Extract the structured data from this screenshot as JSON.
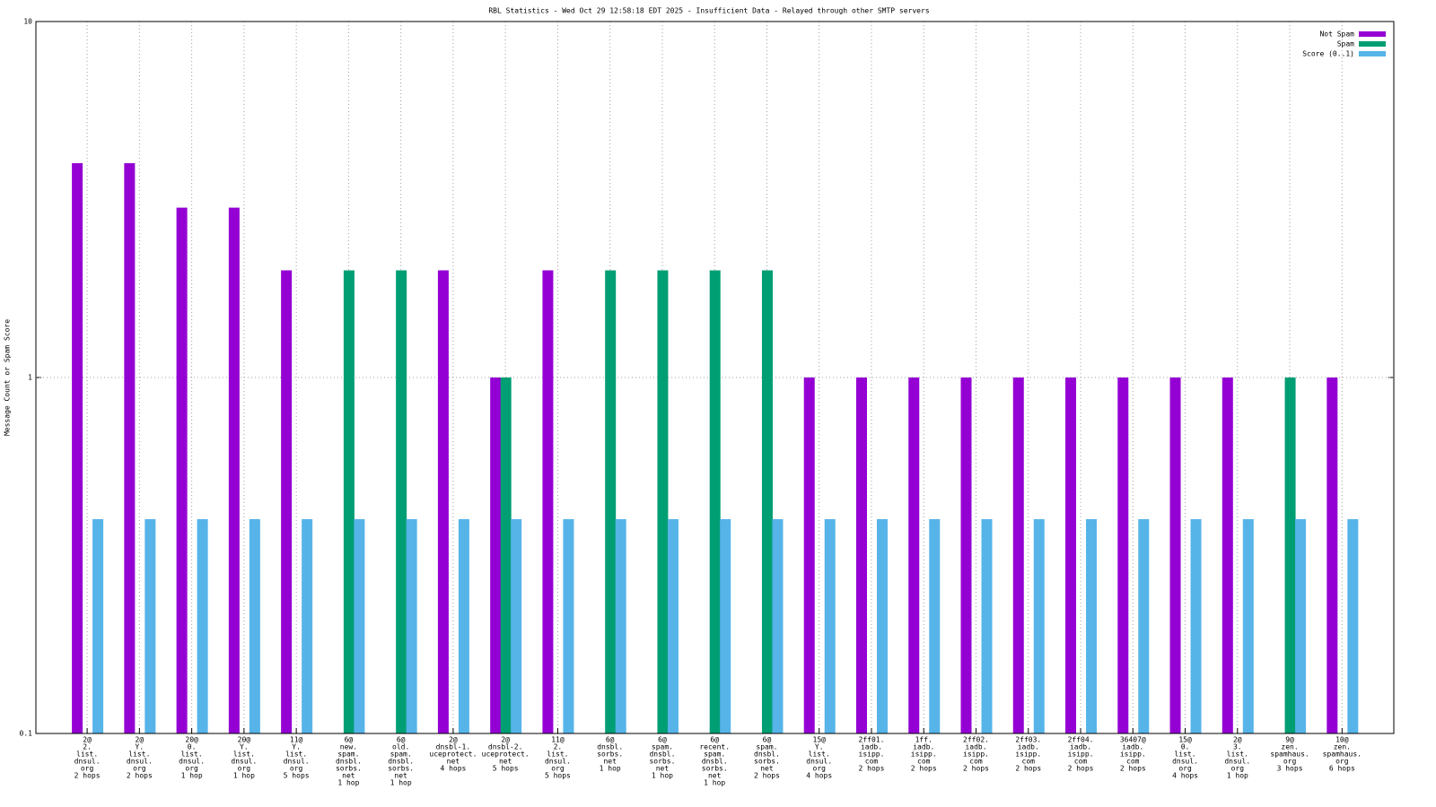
{
  "chart_data": {
    "type": "bar",
    "title": "RBL Statistics - Wed Oct 29 12:58:18 EDT 2025 - Insufficient Data - Relayed through other SMTP servers",
    "y_label": "Message Count or Spam Score",
    "log_scale": true,
    "grid": true,
    "legend": "top-right",
    "ylim": [
      0.1,
      10
    ],
    "yticks": [
      0.1,
      1,
      10
    ],
    "categories": [
      [
        "2@",
        "2.",
        "list.",
        "dnsul.",
        "org",
        "2 hops"
      ],
      [
        "2@",
        "Y.",
        "list.",
        "dnsul.",
        "org",
        "2 hops"
      ],
      [
        "20@",
        "0.",
        "list.",
        "dnsul.",
        "org",
        "1 hop"
      ],
      [
        "20@",
        "Y.",
        "list.",
        "dnsul.",
        "org",
        "1 hop"
      ],
      [
        "11@",
        "Y.",
        "list.",
        "dnsul.",
        "org",
        "5 hops"
      ],
      [
        "6@",
        "new.",
        "spam.",
        "dnsbl.",
        "sorbs.",
        "net",
        "1 hop"
      ],
      [
        "6@",
        "old.",
        "spam.",
        "dnsbl.",
        "sorbs.",
        "net",
        "1 hop"
      ],
      [
        "2@",
        "dnsbl-1.",
        "uceprotect.",
        "net",
        "4 hops"
      ],
      [
        "2@",
        "dnsbl-2.",
        "uceprotect.",
        "net",
        "5 hops"
      ],
      [
        "11@",
        "2.",
        "list.",
        "dnsul.",
        "org",
        "5 hops"
      ],
      [
        "6@",
        "dnsbl.",
        "sorbs.",
        "net",
        "1 hop"
      ],
      [
        "6@",
        "spam.",
        "dnsbl.",
        "sorbs.",
        "net",
        "1 hop"
      ],
      [
        "6@",
        "recent.",
        "spam.",
        "dnsbl.",
        "sorbs.",
        "net",
        "1 hop"
      ],
      [
        "6@",
        "spam.",
        "dnsbl.",
        "sorbs.",
        "net",
        "2 hops"
      ],
      [
        "15@",
        "Y.",
        "list.",
        "dnsul.",
        "org",
        "4 hops"
      ],
      [
        "2ff01.",
        "iadb.",
        "isipp.",
        "com",
        "2 hops"
      ],
      [
        "1ff.",
        "iadb.",
        "isipp.",
        "com",
        "2 hops"
      ],
      [
        "2ff02.",
        "iadb.",
        "isipp.",
        "com",
        "2 hops"
      ],
      [
        "2ff03.",
        "iadb.",
        "isipp.",
        "com",
        "2 hops"
      ],
      [
        "2ff04.",
        "iadb.",
        "isipp.",
        "com",
        "2 hops"
      ],
      [
        "36407@",
        "iadb.",
        "isipp.",
        "com",
        "2 hops"
      ],
      [
        "15@",
        "0.",
        "list.",
        "dnsul.",
        "org",
        "4 hops"
      ],
      [
        "2@",
        "3.",
        "list.",
        "dnsul.",
        "org",
        "1 hop"
      ],
      [
        "9@",
        "zen.",
        "spamhaus.",
        "org",
        "3 hops"
      ],
      [
        "10@",
        "zen.",
        "spamhaus.",
        "org",
        "6 hops"
      ]
    ],
    "series": [
      {
        "name": "Not Spam",
        "color": "#9400d3",
        "values": [
          4,
          4,
          3,
          3,
          2,
          null,
          null,
          2,
          1,
          2,
          null,
          null,
          null,
          null,
          1,
          1,
          1,
          1,
          1,
          1,
          1,
          1,
          1,
          null,
          1
        ]
      },
      {
        "name": "Spam",
        "color": "#009e73",
        "values": [
          null,
          null,
          null,
          null,
          null,
          2,
          2,
          null,
          1,
          null,
          2,
          2,
          2,
          2,
          null,
          null,
          null,
          null,
          null,
          null,
          null,
          null,
          null,
          1,
          null
        ]
      },
      {
        "name": "Score (0..1)",
        "color": "#56b4e9",
        "values": [
          0.4,
          0.4,
          0.4,
          0.4,
          0.4,
          0.4,
          0.4,
          0.4,
          0.4,
          0.4,
          0.4,
          0.4,
          0.4,
          0.4,
          0.4,
          0.4,
          0.4,
          0.4,
          0.4,
          0.4,
          0.4,
          0.4,
          0.4,
          0.4,
          0.4
        ]
      }
    ]
  }
}
